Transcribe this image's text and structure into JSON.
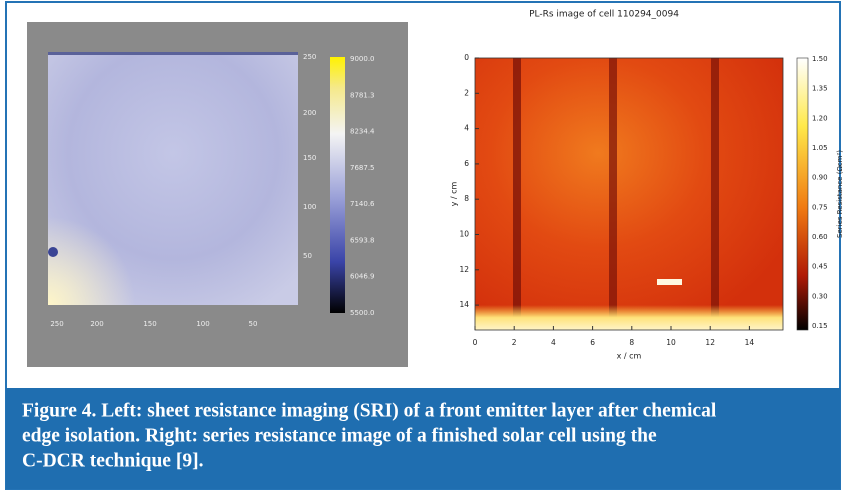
{
  "figure": {
    "left_panel": {
      "y_tick_labels": [
        "250",
        "200",
        "150",
        "100",
        "50"
      ],
      "x_tick_labels": [
        "250",
        "200",
        "150",
        "100",
        "50"
      ],
      "colorbar_labels": [
        "9000.0",
        "8781.3",
        "8234.4",
        "7687.5",
        "7140.6",
        "6593.8",
        "6046.9",
        "5500.0"
      ]
    },
    "right_panel": {
      "title": "PL-Rs image of cell 110294_0094",
      "y_label": "y / cm",
      "x_label": "x / cm",
      "y_tick_labels": [
        "0",
        "2",
        "4",
        "6",
        "8",
        "10",
        "12",
        "14"
      ],
      "x_tick_labels": [
        "0",
        "2",
        "4",
        "6",
        "8",
        "10",
        "12",
        "14"
      ],
      "colorbar_labels": [
        "1.50",
        "1.35",
        "1.20",
        "1.05",
        "0.90",
        "0.75",
        "0.60",
        "0.45",
        "0.30",
        "0.15"
      ],
      "colorbar_label": "Series Resistance (Ωcm²)"
    },
    "caption": [
      "Figure 4. Left: sheet resistance imaging (SRI) of a front emitter layer after chemical",
      "edge isolation. Right: series resistance image of a finished solar cell using the",
      "C-DCR technique [9]."
    ]
  }
}
